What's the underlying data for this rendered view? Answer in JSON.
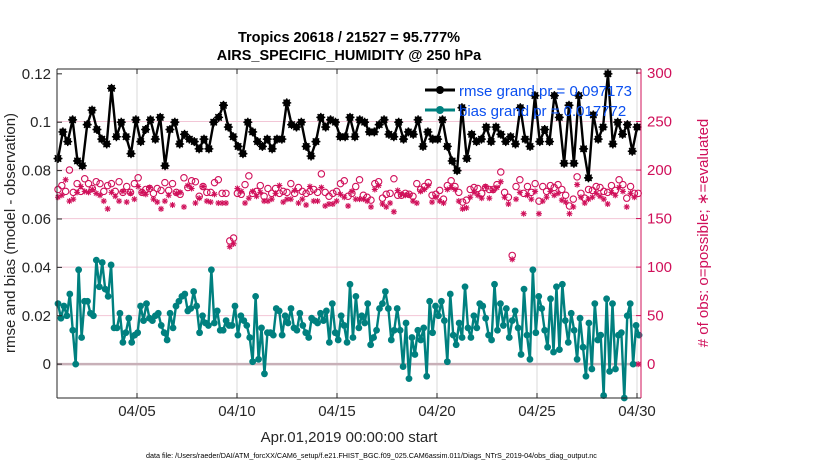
{
  "chart_data": {
    "type": "line",
    "title": [
      "Tropics 20618 / 21527 = 95.777%",
      "AIRS_SPECIFIC_HUMIDITY @ 250 hPa"
    ],
    "xlabel": "Apr.01,2019 00:00:00 start",
    "ylabel": "rmse and bias (model - observation)",
    "ylabel_right": "# of obs: o=possible; ∗=evaluated",
    "x_unit": "days since Apr.01,2019 00:00:00",
    "x_step_days": 0.25,
    "xlim": [
      0,
      29.2
    ],
    "ylim": [
      -0.014,
      0.122
    ],
    "ylim_right": [
      0,
      300
    ],
    "xticks": [
      {
        "value": 4,
        "label": "04/05"
      },
      {
        "value": 9,
        "label": "04/10"
      },
      {
        "value": 14,
        "label": "04/15"
      },
      {
        "value": 19,
        "label": "04/20"
      },
      {
        "value": 24,
        "label": "04/25"
      },
      {
        "value": 29,
        "label": "04/30"
      }
    ],
    "yticks": [
      0,
      0.02,
      0.04,
      0.06,
      0.08,
      0.1,
      0.12
    ],
    "ytick_labels": [
      "0",
      "0.02",
      "0.04",
      "0.06",
      "0.08",
      "0.1",
      "0.12"
    ],
    "yticks_right": [
      0,
      50,
      100,
      150,
      200,
      250,
      300
    ],
    "grid": true,
    "legend_position": "top-right",
    "legend": [
      {
        "name": "rmse grand pr = 0.097173",
        "color": "#000000",
        "marker": "asterisk-dot"
      },
      {
        "name": "bias grand pr = 0.017772",
        "color": "#00807f",
        "marker": "dot"
      }
    ],
    "colors": {
      "rmse": "#000000",
      "bias": "#00807f",
      "obs": "#d0105a",
      "zero_line": "#c8b0b8",
      "grid_v": "#d9d9d9",
      "grid_h_right": "#f2c6d6"
    },
    "series": [
      {
        "name": "rmse",
        "axis": "left",
        "values": [
          0.085,
          0.096,
          0.092,
          0.101,
          0.084,
          0.082,
          0.099,
          0.105,
          0.097,
          0.093,
          0.091,
          0.114,
          0.094,
          0.1,
          0.094,
          0.087,
          0.101,
          0.092,
          0.097,
          0.101,
          0.093,
          0.102,
          0.082,
          0.097,
          0.1,
          0.091,
          0.095,
          0.093,
          0.092,
          0.089,
          0.093,
          0.089,
          0.1,
          0.102,
          0.107,
          0.098,
          0.094,
          0.09,
          0.087,
          0.1,
          0.096,
          0.092,
          0.09,
          0.093,
          0.089,
          0.093,
          0.093,
          0.108,
          0.099,
          0.098,
          0.1,
          0.09,
          0.086,
          0.092,
          0.102,
          0.098,
          0.101,
          0.1,
          0.094,
          0.094,
          0.102,
          0.094,
          0.101,
          0.1,
          0.096,
          0.096,
          0.099,
          0.101,
          0.095,
          0.094,
          0.1,
          0.093,
          0.096,
          0.095,
          0.101,
          0.09,
          0.096,
          0.093,
          0.093,
          0.101,
          0.09,
          0.084,
          0.08,
          0.106,
          0.085,
          0.095,
          0.092,
          0.093,
          0.098,
          0.092,
          0.098,
          0.095,
          0.092,
          0.094,
          0.091,
          0.106,
          0.093,
          0.09,
          0.111,
          0.092,
          0.097,
          0.092,
          0.111,
          0.102,
          0.083,
          0.107,
          0.083,
          0.111,
          0.089,
          0.077,
          0.103,
          0.093,
          0.098,
          0.12,
          0.091,
          0.1,
          0.095,
          0.099,
          0.088,
          0.098
        ]
      },
      {
        "name": "bias",
        "axis": "left",
        "values": [
          0.025,
          0.019,
          0.024,
          0.02,
          0.029,
          0.014,
          0.0,
          0.039,
          0.011,
          0.026,
          0.026,
          0.021,
          0.02,
          0.043,
          0.032,
          0.042,
          0.031,
          0.028,
          0.041,
          0.015,
          0.015,
          0.021,
          0.009,
          0.013,
          0.019,
          0.009,
          0.012,
          0.013,
          0.024,
          0.018,
          0.025,
          0.019,
          0.018,
          0.02,
          0.021,
          0.016,
          0.013,
          0.01,
          0.021,
          0.015,
          0.024,
          0.026,
          0.028,
          0.029,
          0.022,
          0.023,
          0.03,
          0.024,
          0.013,
          0.02,
          0.017,
          0.016,
          0.039,
          0.017,
          0.022,
          0.014,
          0.014,
          0.018,
          0.016,
          0.016,
          0.024,
          0.012,
          0.02,
          0.018,
          0.016,
          0.011,
          0.001,
          0.028,
          0.002,
          0.015,
          -0.004,
          0.013,
          0.013,
          0.012,
          0.023,
          0.022,
          0.012,
          0.02,
          0.017,
          0.023,
          0.015,
          0.014,
          0.021,
          0.016,
          0.013,
          0.011,
          0.019,
          0.018,
          0.017,
          0.021,
          0.018,
          0.022,
          0.009,
          0.025,
          0.013,
          0.01,
          0.02,
          0.016,
          0.009,
          0.033,
          0.011,
          0.028,
          0.015,
          0.02,
          0.017,
          0.025,
          0.008,
          0.011,
          0.014,
          0.023,
          0.025,
          0.03,
          0.023,
          0.01,
          0.014,
          0.023,
          0.014,
          -0.001,
          0.017,
          -0.006,
          0.011,
          0.004,
          0.014,
          0.01,
          0.015,
          -0.005,
          0.026,
          0.013,
          0.024,
          0.02,
          0.026,
          0.018,
          0.001,
          0.029,
          0.012,
          0.008,
          0.017,
          0.011,
          0.032,
          0.015,
          0.011,
          0.02,
          0.015,
          0.025,
          0.024,
          0.019,
          0.012,
          0.01,
          0.033,
          0.014,
          0.025,
          0.016,
          0.023,
          0.011,
          0.018,
          0.022,
          0.015,
          0.004,
          0.031,
          0.012,
          0.002,
          0.039,
          0.013,
          0.028,
          0.023,
          0.014,
          0.007,
          0.027,
          0.005,
          0.032,
          0.006,
          0.033,
          0.018,
          0.009,
          0.021,
          0.014,
          0.002,
          0.019,
          0.007,
          -0.005,
          0.017,
          -0.002,
          0.025,
          0.01,
          0.012,
          -0.013,
          0.027,
          -0.003,
          0.025,
          -0.002,
          0.012,
          0.013,
          -0.014,
          0.02,
          0.025,
          0.0,
          0.016,
          0.012
        ]
      },
      {
        "name": "possible",
        "axis": "right",
        "marker": "circle",
        "values": [
          180,
          184,
          178,
          200,
          177,
          186,
          178,
          191,
          186,
          181,
          188,
          186,
          178,
          184,
          186,
          178,
          188,
          177,
          183,
          177,
          186,
          192,
          177,
          180,
          181,
          176,
          181,
          179,
          187,
          179,
          186,
          177,
          175,
          192,
          182,
          189,
          188,
          173,
          183,
          177,
          177,
          187,
          190,
          176,
          176,
          127,
          130,
          176,
          175,
          185,
          194,
          176,
          178,
          184,
          173,
          181,
          176,
          181,
          176,
          178,
          177,
          186,
          176,
          182,
          178,
          176,
          178,
          180,
          177,
          196,
          177,
          173,
          176,
          178,
          186,
          189,
          173,
          176,
          183,
          190,
          174,
          172,
          169,
          186,
          188,
          171,
          175,
          176,
          191,
          174,
          174,
          176,
          175,
          173,
          186,
          180,
          183,
          187,
          174,
          175,
          179,
          170,
          184,
          189,
          183,
          177,
          167,
          169,
          180,
          182,
          181,
          176,
          182,
          180,
          180,
          185,
          198,
          177,
          172,
          112,
          183,
          190,
          176,
          183,
          177,
          186,
          168,
          183,
          178,
          184,
          182,
          185,
          180,
          174,
          163,
          170,
          193,
          176,
          171,
          180,
          179,
          183,
          182,
          178,
          177,
          184,
          179,
          190,
          185,
          171,
          183,
          176,
          176
        ]
      },
      {
        "name": "evaluated",
        "axis": "right",
        "marker": "asterisk",
        "values": [
          172,
          174,
          190,
          168,
          170,
          177,
          183,
          178,
          177,
          180,
          176,
          174,
          168,
          160,
          177,
          173,
          168,
          178,
          167,
          176,
          170,
          183,
          177,
          175,
          182,
          170,
          167,
          160,
          168,
          174,
          164,
          176,
          177,
          162,
          184,
          181,
          166,
          171,
          183,
          168,
          167,
          175,
          166,
          166,
          166,
          121,
          124,
          181,
          178,
          166,
          171,
          178,
          173,
          177,
          168,
          168,
          170,
          176,
          184,
          167,
          170,
          170,
          179,
          166,
          170,
          164,
          183,
          168,
          168,
          182,
          163,
          165,
          165,
          168,
          175,
          172,
          163,
          178,
          170,
          170,
          170,
          168,
          162,
          180,
          184,
          165,
          162,
          166,
          157,
          179,
          175,
          174,
          174,
          168,
          166,
          178,
          180,
          184,
          167,
          172,
          168,
          166,
          180,
          182,
          180,
          168,
          160,
          161,
          172,
          177,
          174,
          171,
          183,
          171,
          179,
          182,
          188,
          172,
          165,
          108,
          170,
          177,
          155,
          174,
          170,
          178,
          155,
          168,
          172,
          178,
          174,
          176,
          169,
          167,
          155,
          162,
          185,
          172,
          166,
          170,
          172,
          176,
          173,
          170,
          165,
          177,
          174,
          182,
          178,
          162,
          176,
          172,
          0
        ]
      }
    ]
  },
  "footer": {
    "data_file": "data file: /Users/raeder/DAI/ATM_forcXX/CAM6_setup/f.e21.FHIST_BGC.f09_025.CAM6assim.011/Diags_NTrS_2019-04/obs_diag_output.nc"
  }
}
